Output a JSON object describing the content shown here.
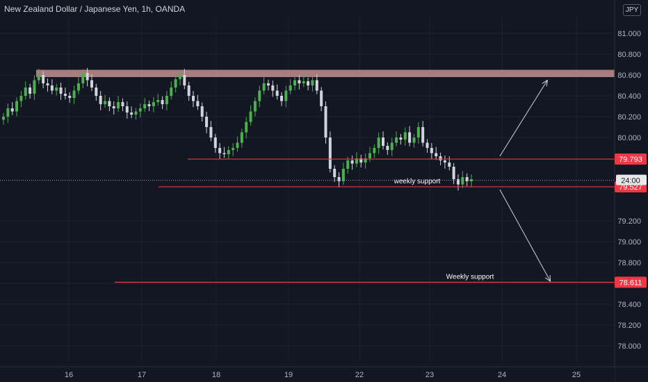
{
  "header": {
    "title": "New Zealand Dollar / Japanese Yen, 1h, OANDA",
    "currency": "JPY"
  },
  "colors": {
    "background": "#131722",
    "up": "#26a69a",
    "up_body": "#4caf50",
    "down": "#ef5350",
    "down_body": "#d1d4dc",
    "level_line": "#f23645",
    "resistance_zone": "#e0a3a0",
    "axis_text": "#b2b5be",
    "arrow": "#d1d4dc"
  },
  "chart_data": {
    "type": "candlestick",
    "symbol": "NZDJPY",
    "interval": "1h",
    "ylim": [
      77.9,
      81.25
    ],
    "y_ticks": [
      "81.000",
      "80.800",
      "80.600",
      "80.400",
      "80.200",
      "80.000",
      "79.200",
      "79.000",
      "78.800",
      "78.600",
      "78.400",
      "78.200",
      "78.000"
    ],
    "x_ticks": [
      "16",
      "17",
      "18",
      "19",
      "22",
      "23",
      "24",
      "25"
    ],
    "resistance_zone": {
      "from": 80.58,
      "to": 80.65
    },
    "levels": [
      {
        "price": 79.793,
        "label": "79.793"
      },
      {
        "price": 79.527,
        "label": "79.527",
        "annotation": "weekly support"
      },
      {
        "price": 78.611,
        "label": "78.611",
        "annotation": "Weekly support"
      }
    ],
    "current_price": {
      "price": 79.59,
      "countdown": "24:00"
    },
    "projection_arrows": [
      {
        "from": [
          "23.97",
          79.82
        ],
        "to": [
          "24.61",
          80.55
        ],
        "direction": "up"
      },
      {
        "from": [
          "23.97",
          79.5
        ],
        "to": [
          "24.65",
          78.62
        ],
        "direction": "down"
      }
    ],
    "closes": [
      80.2,
      80.28,
      80.25,
      80.35,
      80.4,
      80.48,
      80.42,
      80.55,
      80.6,
      80.52,
      80.5,
      80.45,
      80.48,
      80.42,
      80.4,
      80.38,
      80.45,
      80.52,
      80.62,
      80.55,
      80.48,
      80.4,
      80.32,
      80.35,
      80.3,
      80.28,
      80.34,
      80.3,
      80.24,
      80.22,
      80.25,
      80.28,
      80.32,
      80.3,
      80.34,
      80.36,
      80.32,
      80.4,
      80.48,
      80.56,
      80.6,
      80.5,
      80.4,
      80.35,
      80.3,
      80.2,
      80.1,
      80.0,
      79.9,
      79.85,
      79.84,
      79.88,
      79.9,
      79.95,
      80.05,
      80.15,
      80.25,
      80.35,
      80.45,
      80.52,
      80.5,
      80.45,
      80.4,
      80.35,
      80.45,
      80.5,
      80.55,
      80.52,
      80.54,
      80.5,
      80.55,
      80.45,
      80.3,
      80.0,
      79.7,
      79.62,
      79.58,
      79.7,
      79.78,
      79.75,
      79.8,
      79.76,
      79.8,
      79.85,
      79.9,
      80.0,
      79.92,
      79.88,
      79.95,
      80.0,
      79.98,
      80.05,
      79.95,
      80.0,
      80.1,
      79.95,
      79.9,
      79.85,
      79.82,
      79.78,
      79.76,
      79.72,
      79.6,
      79.55,
      79.62,
      79.58,
      79.6
    ]
  }
}
